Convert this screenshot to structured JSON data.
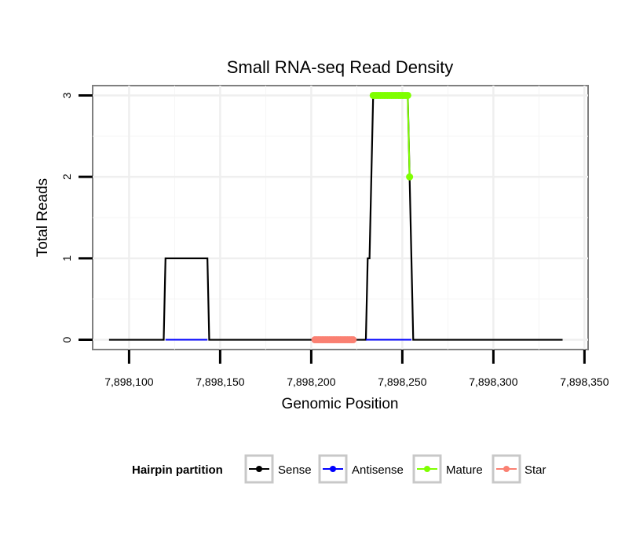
{
  "chart_data": {
    "type": "line",
    "title": "Small RNA-seq Read Density",
    "xlabel": "Genomic Position",
    "ylabel": "Total Reads",
    "xlim": [
      7898080,
      7898352
    ],
    "ylim": [
      -0.12,
      3.12
    ],
    "x_ticks": [
      7898100,
      7898150,
      7898200,
      7898250,
      7898300,
      7898350
    ],
    "x_tick_labels": [
      "7,898,100",
      "7,898,150",
      "7,898,200",
      "7,898,250",
      "7,898,300",
      "7,898,350"
    ],
    "y_ticks": [
      0,
      1,
      2,
      3
    ],
    "y_tick_labels": [
      "0",
      "1",
      "2",
      "3"
    ],
    "grid": true,
    "legend": {
      "title": "Hairpin partition",
      "position": "bottom",
      "entries": [
        {
          "name": "Sense",
          "color": "#000000"
        },
        {
          "name": "Antisense",
          "color": "#0000ff"
        },
        {
          "name": "Mature",
          "color": "#7fff00"
        },
        {
          "name": "Star",
          "color": "#fa8072"
        }
      ]
    },
    "series": [
      {
        "name": "Sense",
        "color": "#000000",
        "style": "line",
        "x": [
          7898089,
          7898119,
          7898120,
          7898143,
          7898144,
          7898229,
          7898230,
          7898231,
          7898232,
          7898233,
          7898234,
          7898253,
          7898254,
          7898255,
          7898256,
          7898338
        ],
        "y": [
          0,
          0,
          1,
          1,
          0,
          0,
          0,
          1,
          1,
          2,
          3,
          3,
          2,
          1,
          0,
          0
        ]
      },
      {
        "name": "Antisense",
        "color": "#0000ff",
        "style": "line",
        "segments": [
          {
            "x": [
              7898120,
              7898143
            ],
            "y": [
              0,
              0
            ]
          },
          {
            "x": [
              7898230,
              7898255
            ],
            "y": [
              0,
              0
            ]
          }
        ]
      },
      {
        "name": "Mature",
        "color": "#7fff00",
        "style": "points",
        "x": [
          7898234,
          7898235,
          7898236,
          7898237,
          7898238,
          7898239,
          7898240,
          7898241,
          7898242,
          7898243,
          7898244,
          7898245,
          7898246,
          7898247,
          7898248,
          7898249,
          7898250,
          7898251,
          7898252,
          7898253,
          7898254
        ],
        "y": [
          3,
          3,
          3,
          3,
          3,
          3,
          3,
          3,
          3,
          3,
          3,
          3,
          3,
          3,
          3,
          3,
          3,
          3,
          3,
          3,
          2
        ]
      },
      {
        "name": "Star",
        "color": "#fa8072",
        "style": "points",
        "x": [
          7898202,
          7898203,
          7898204,
          7898205,
          7898206,
          7898207,
          7898208,
          7898209,
          7898210,
          7898211,
          7898212,
          7898213,
          7898214,
          7898215,
          7898216,
          7898217,
          7898218,
          7898219,
          7898220,
          7898221,
          7898222,
          7898223
        ],
        "y": [
          0,
          0,
          0,
          0,
          0,
          0,
          0,
          0,
          0,
          0,
          0,
          0,
          0,
          0,
          0,
          0,
          0,
          0,
          0,
          0,
          0,
          0
        ]
      }
    ]
  }
}
